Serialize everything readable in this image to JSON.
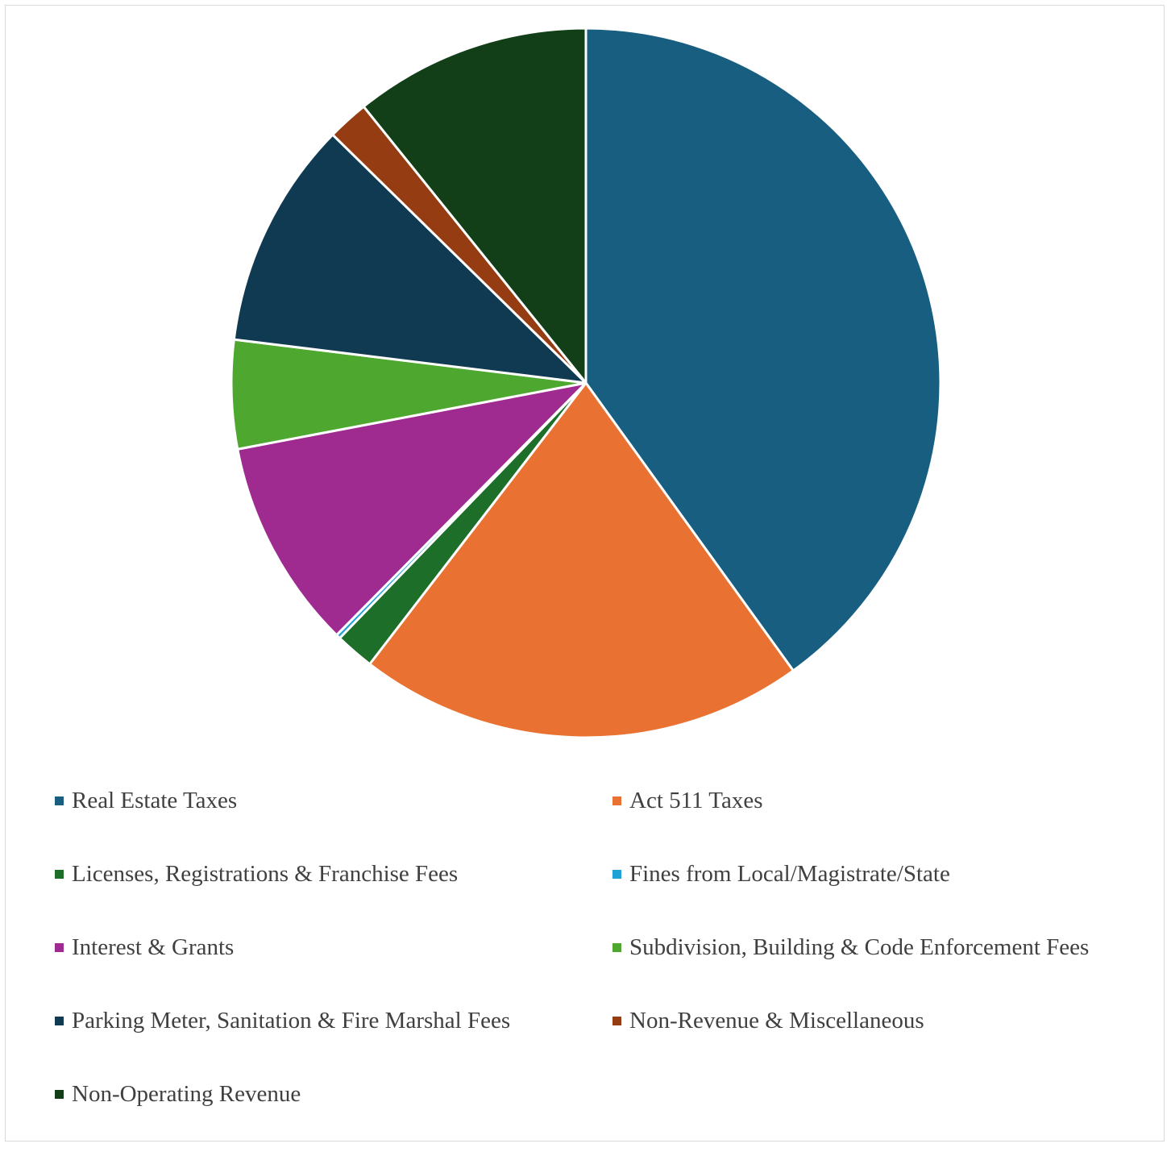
{
  "chart_data": {
    "type": "pie",
    "title": "",
    "legend_position": "bottom",
    "categories": [
      "Real Estate Taxes",
      "Act 511 Taxes",
      "Licenses, Registrations & Franchise Fees",
      "Fines from Local/Magistrate/State",
      "Interest & Grants",
      "Subdivision, Building & Code Enforcement Fees",
      "Parking Meter, Sanitation & Fire Marshal Fees",
      "Non-Revenue & Miscellaneous",
      "Non-Operating Revenue"
    ],
    "values": [
      40.5,
      20.6,
      1.8,
      0.2,
      9.7,
      5.0,
      10.5,
      1.9,
      10.9
    ],
    "colors": [
      "#175e80",
      "#e97232",
      "#1c6e28",
      "#21a2d7",
      "#a02b90",
      "#4ea72f",
      "#0f3a52",
      "#963c12",
      "#123f17"
    ]
  }
}
